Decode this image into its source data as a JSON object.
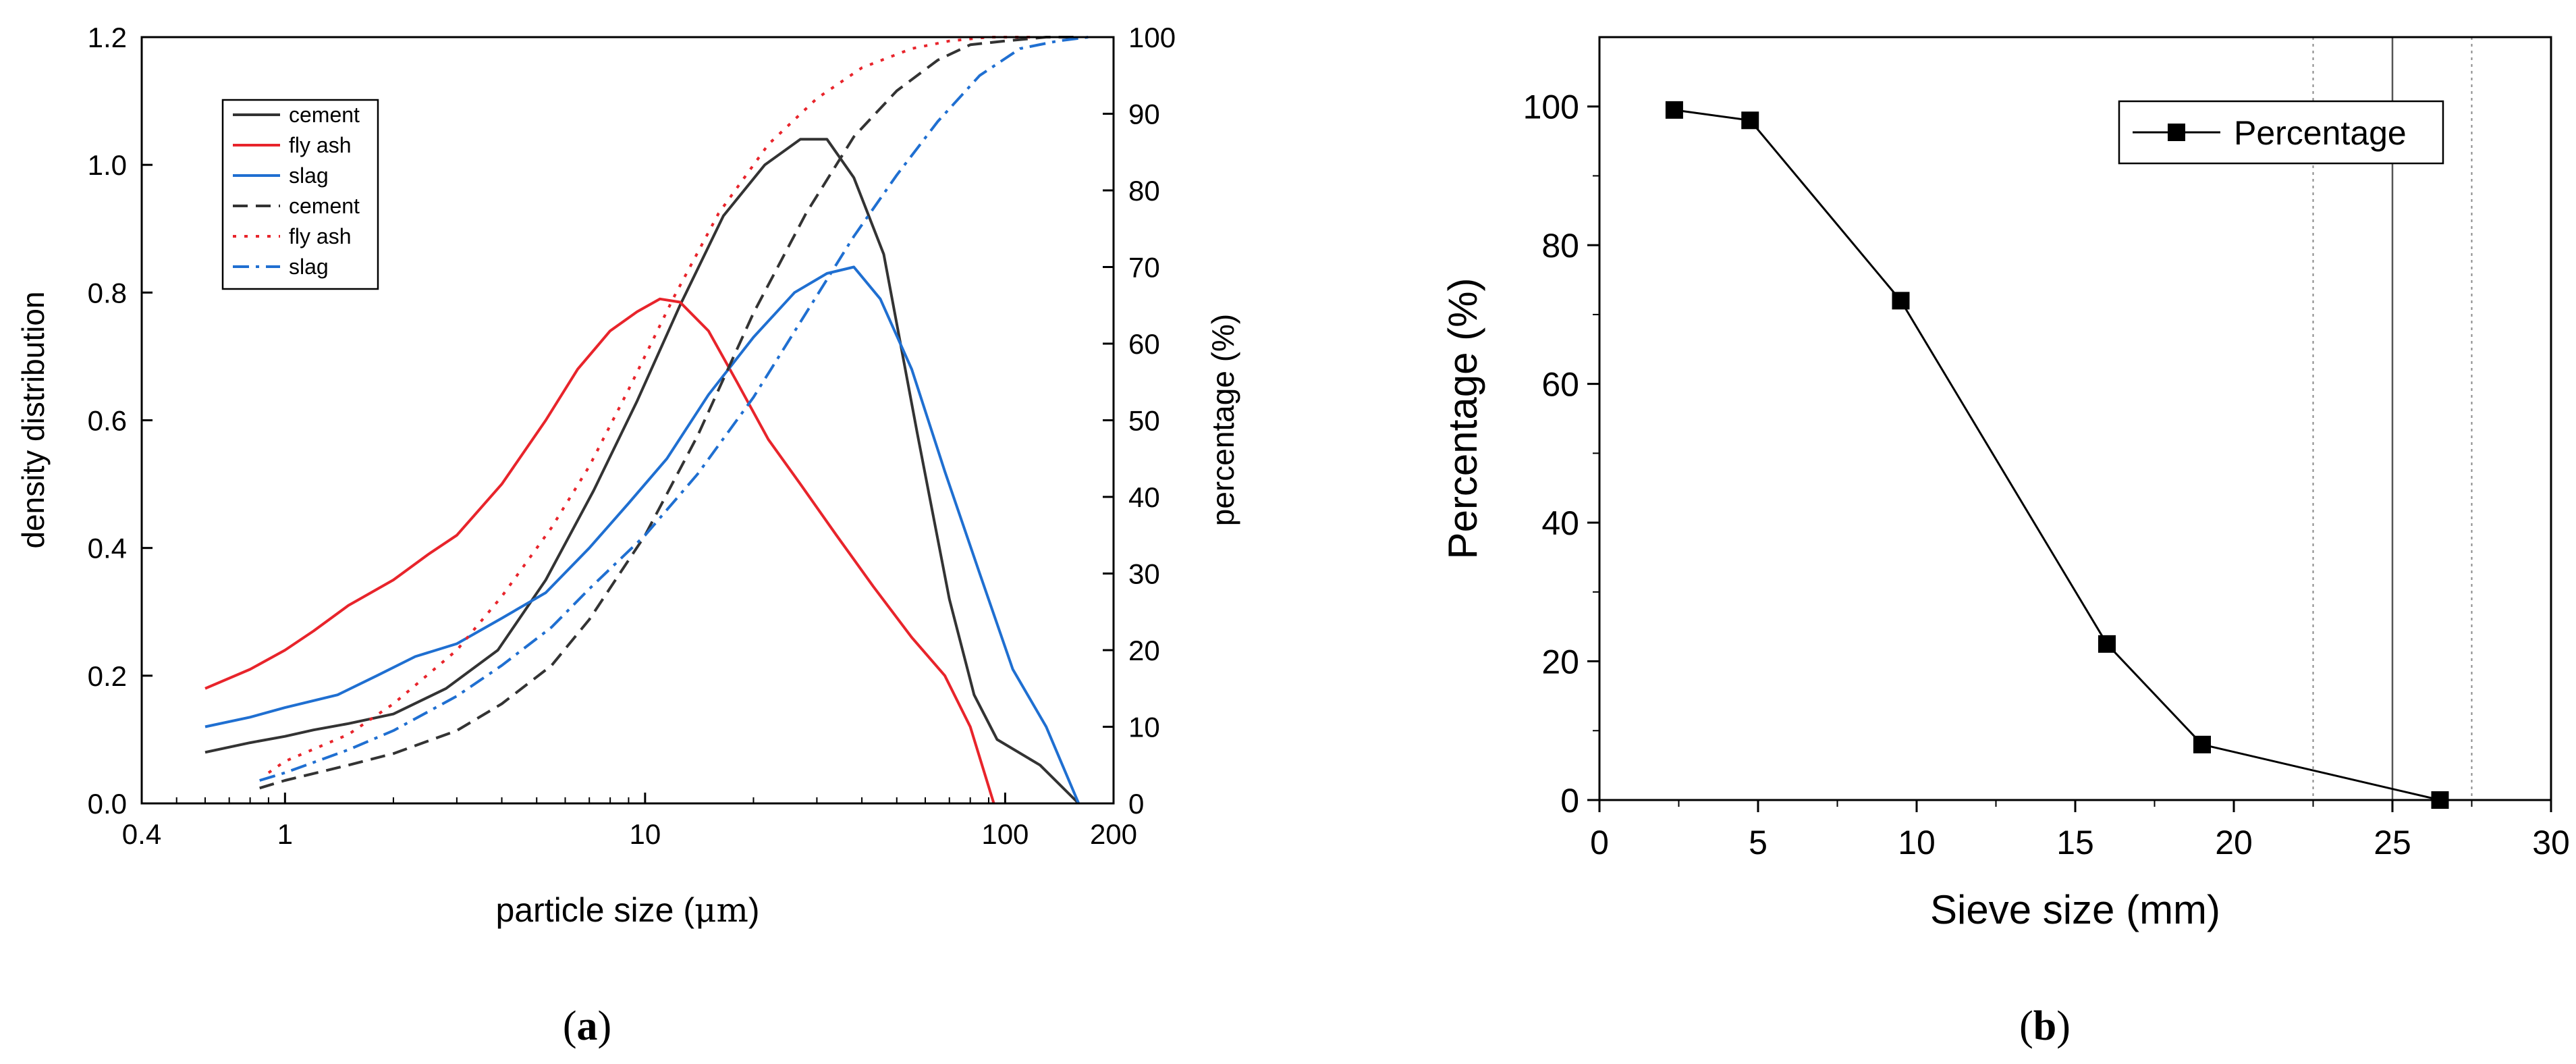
{
  "chart_data": [
    {
      "type": "line",
      "panel": "a",
      "caption_letter": "a",
      "xlabel_prefix": "particle size (",
      "xlabel_unit": "μm",
      "xlabel_suffix": ")",
      "ylabel": "density distribution",
      "ylabel_right": "percentage (%)",
      "x_scale": "log",
      "xlim": [
        0.4,
        200
      ],
      "ylim": [
        0,
        1.2
      ],
      "ylim_right": [
        0,
        100
      ],
      "xticks": [
        0.4,
        1,
        10,
        100,
        200
      ],
      "xtick_labels": [
        "0.4",
        "1",
        "10",
        "100",
        "200"
      ],
      "yticks": [
        0.0,
        0.2,
        0.4,
        0.6,
        0.8,
        1.0,
        1.2
      ],
      "ytick_labels": [
        "0.0",
        "0.2",
        "0.4",
        "0.6",
        "0.8",
        "1.0",
        "1.2"
      ],
      "yticks_right": [
        0,
        10,
        20,
        30,
        40,
        50,
        60,
        70,
        80,
        90,
        100
      ],
      "ytick_labels_right": [
        "0",
        "10",
        "20",
        "30",
        "40",
        "50",
        "60",
        "70",
        "80",
        "90",
        "100"
      ],
      "legend": [
        {
          "label": "cement",
          "color": "#333333",
          "dash": "solid"
        },
        {
          "label": "fly ash",
          "color": "#e8242b",
          "dash": "solid"
        },
        {
          "label": "slag",
          "color": "#1f6fd1",
          "dash": "solid"
        },
        {
          "label": "cement",
          "color": "#333333",
          "dash": "dash"
        },
        {
          "label": "fly ash",
          "color": "#e8242b",
          "dash": "dot"
        },
        {
          "label": "slag",
          "color": "#1f6fd1",
          "dash": "dashdot"
        }
      ],
      "series": [
        {
          "name": "cement",
          "axis": "left",
          "color": "#333333",
          "dash": "solid",
          "x": [
            0.6,
            0.8,
            1.0,
            1.2,
            1.5,
            2.0,
            2.8,
            3.9,
            5.3,
            7.2,
            9.5,
            12.5,
            16.5,
            21.5,
            27.0,
            32.0,
            38.0,
            46.0,
            57.0,
            70.0,
            82.0,
            95.0,
            125.0,
            160.0
          ],
          "y": [
            0.08,
            0.095,
            0.105,
            0.115,
            0.125,
            0.14,
            0.18,
            0.24,
            0.35,
            0.49,
            0.63,
            0.78,
            0.92,
            1.0,
            1.04,
            1.04,
            0.98,
            0.86,
            0.58,
            0.32,
            0.17,
            0.1,
            0.06,
            0.0
          ]
        },
        {
          "name": "fly ash",
          "axis": "left",
          "color": "#e8242b",
          "dash": "solid",
          "x": [
            0.6,
            0.8,
            1.0,
            1.2,
            1.5,
            2.0,
            2.5,
            3.0,
            4.0,
            5.3,
            6.5,
            8.0,
            9.5,
            11.0,
            12.5,
            15.0,
            18.0,
            22.0,
            27.0,
            34.0,
            43.0,
            55.0,
            68.0,
            80.0,
            93.0
          ],
          "y": [
            0.18,
            0.21,
            0.24,
            0.27,
            0.31,
            0.35,
            0.39,
            0.42,
            0.5,
            0.6,
            0.68,
            0.74,
            0.77,
            0.79,
            0.785,
            0.74,
            0.66,
            0.57,
            0.5,
            0.42,
            0.34,
            0.26,
            0.2,
            0.12,
            0.0
          ]
        },
        {
          "name": "slag",
          "axis": "left",
          "color": "#1f6fd1",
          "dash": "solid",
          "x": [
            0.6,
            0.8,
            1.0,
            1.4,
            1.8,
            2.3,
            3.0,
            4.0,
            5.3,
            7.0,
            9.0,
            11.5,
            15.0,
            20.0,
            26.0,
            32.0,
            38.0,
            45.0,
            55.0,
            68.0,
            85.0,
            105.0,
            130.0,
            160.0
          ],
          "y": [
            0.12,
            0.135,
            0.15,
            0.17,
            0.2,
            0.23,
            0.25,
            0.29,
            0.33,
            0.4,
            0.47,
            0.54,
            0.64,
            0.73,
            0.8,
            0.83,
            0.84,
            0.79,
            0.68,
            0.52,
            0.36,
            0.21,
            0.12,
            0.0
          ]
        },
        {
          "name": "cement",
          "axis": "right",
          "color": "#333333",
          "dash": "dash",
          "x": [
            0.85,
            1.0,
            1.5,
            2.0,
            3.0,
            4.0,
            5.5,
            7.0,
            10.0,
            14.0,
            20.0,
            28.0,
            38.0,
            50.0,
            65.0,
            80.0,
            100.0,
            130.0,
            160.0
          ],
          "y": [
            2,
            3,
            5,
            6.5,
            9.5,
            13,
            18,
            24,
            35,
            48,
            64,
            77,
            87,
            93,
            97,
            99,
            99.5,
            100,
            100
          ]
        },
        {
          "name": "fly ash",
          "axis": "right",
          "color": "#e8242b",
          "dash": "dot",
          "x": [
            0.9,
            1.0,
            1.5,
            2.0,
            3.0,
            4.0,
            5.5,
            7.0,
            9.0,
            12.0,
            16.0,
            22.0,
            30.0,
            40.0,
            55.0,
            70.0,
            90.0,
            120.0
          ],
          "y": [
            4,
            5.5,
            9,
            13,
            20,
            27,
            36,
            44,
            54,
            66,
            77,
            86,
            92,
            96,
            98.5,
            99.5,
            100,
            100
          ]
        },
        {
          "name": "slag",
          "axis": "right",
          "color": "#1f6fd1",
          "dash": "dashdot",
          "x": [
            0.85,
            1.0,
            1.5,
            2.0,
            3.0,
            4.0,
            5.5,
            7.0,
            10.0,
            14.0,
            20.0,
            28.0,
            38.0,
            50.0,
            65.0,
            85.0,
            110.0,
            140.0,
            170.0
          ],
          "y": [
            3,
            4,
            7,
            9.5,
            14,
            18,
            23,
            28,
            35,
            43,
            53,
            64,
            74,
            82,
            89,
            95,
            98.5,
            99.5,
            100
          ]
        }
      ]
    },
    {
      "type": "line",
      "panel": "b",
      "caption_letter": "b",
      "xlabel": "Sieve size (mm)",
      "ylabel": "Percentage (%)",
      "xlim": [
        0,
        30
      ],
      "ylim": [
        0,
        110
      ],
      "xticks": [
        0,
        5,
        10,
        15,
        20,
        25,
        30
      ],
      "xtick_labels": [
        "0",
        "5",
        "10",
        "15",
        "20",
        "25",
        "30"
      ],
      "yticks": [
        0,
        20,
        40,
        60,
        80,
        100
      ],
      "ytick_labels": [
        "0",
        "20",
        "40",
        "60",
        "80",
        "100"
      ],
      "vlines": [
        {
          "x": 22.5,
          "style": "dotted"
        },
        {
          "x": 25.0,
          "style": "solid"
        },
        {
          "x": 27.5,
          "style": "dotted"
        }
      ],
      "legend": [
        {
          "label": "Percentage",
          "marker": "square",
          "color": "#000000"
        }
      ],
      "series": [
        {
          "name": "Percentage",
          "color": "#000000",
          "marker": "square",
          "x": [
            2.36,
            4.75,
            9.5,
            16.0,
            19.0,
            26.5
          ],
          "y": [
            99.5,
            98.0,
            72.0,
            22.5,
            8.0,
            0.0
          ]
        }
      ]
    }
  ]
}
